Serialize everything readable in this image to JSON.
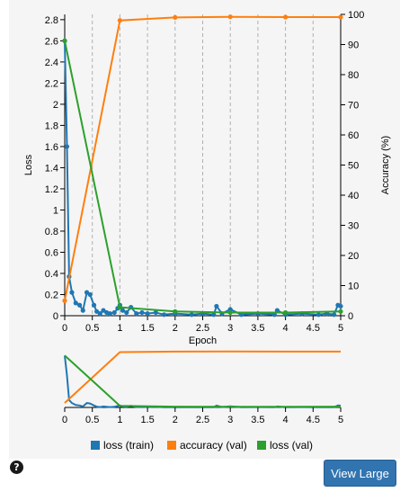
{
  "chart_data": [
    {
      "type": "line",
      "title": "",
      "xlabel": "Epoch",
      "ylabel": "Loss",
      "y2label": "Accuracy (%)",
      "xlim": [
        0,
        5
      ],
      "ylim": [
        0,
        2.85
      ],
      "y2lim": [
        0,
        100
      ],
      "x_ticks": [
        "0",
        "0.5",
        "1",
        "1.5",
        "2",
        "2.5",
        "3",
        "3.5",
        "4",
        "4.5",
        "5"
      ],
      "y_ticks": [
        "0",
        "0.2",
        "0.4",
        "0.6",
        "0.8",
        "1",
        "1.2",
        "1.4",
        "1.6",
        "1.8",
        "2",
        "2.2",
        "2.4",
        "2.6",
        "2.8"
      ],
      "y2_ticks": [
        "0",
        "10",
        "20",
        "30",
        "40",
        "50",
        "60",
        "70",
        "80",
        "90",
        "100"
      ],
      "grid": "vertical dashed",
      "legend_position": "bottom",
      "series": [
        {
          "name": "loss (train)",
          "color": "#1f77b4",
          "axis": "left",
          "x": [
            0,
            0.04,
            0.08,
            0.13,
            0.2,
            0.27,
            0.33,
            0.4,
            0.46,
            0.53,
            0.58,
            0.64,
            0.7,
            0.76,
            0.82,
            0.9,
            0.96,
            1.0,
            1.05,
            1.12,
            1.2,
            1.3,
            1.4,
            1.5,
            1.65,
            1.8,
            2.0,
            2.3,
            2.5,
            2.7,
            2.75,
            2.85,
            3.0,
            3.2,
            3.5,
            3.8,
            3.85,
            4.0,
            4.3,
            4.6,
            4.75,
            4.88,
            4.95,
            5.0
          ],
          "values": [
            2.6,
            1.6,
            0.37,
            0.22,
            0.12,
            0.1,
            0.05,
            0.22,
            0.2,
            0.1,
            0.04,
            0.02,
            0.05,
            0.03,
            0.02,
            0.03,
            0.07,
            0.1,
            0.05,
            0.03,
            0.08,
            0.02,
            0.03,
            0.02,
            0.03,
            0.01,
            0.02,
            0.01,
            0.02,
            0.01,
            0.09,
            0.02,
            0.06,
            0.01,
            0.02,
            0.01,
            0.05,
            0.01,
            0.02,
            0.01,
            0.02,
            0.01,
            0.1,
            0.09
          ]
        },
        {
          "name": "accuracy (val)",
          "color": "#ff7f0e",
          "axis": "right",
          "x": [
            0,
            1,
            2,
            3,
            4,
            5
          ],
          "values": [
            5,
            98,
            99,
            99.2,
            99.1,
            99.1
          ]
        },
        {
          "name": "loss (val)",
          "color": "#2ca02c",
          "axis": "left",
          "x": [
            0,
            1,
            2,
            3,
            4,
            5
          ],
          "values": [
            2.6,
            0.08,
            0.04,
            0.03,
            0.03,
            0.04
          ]
        }
      ]
    },
    {
      "type": "line",
      "title": "",
      "xlim": [
        0,
        5
      ],
      "x_ticks": [
        "0",
        "0.5",
        "1",
        "1.5",
        "2",
        "2.5",
        "3",
        "3.5",
        "4",
        "4.5",
        "5"
      ],
      "description": "overview / brush of the same three series"
    }
  ],
  "legend": [
    {
      "label": "loss (train)",
      "color": "#1f77b4"
    },
    {
      "label": "accuracy (val)",
      "color": "#ff7f0e"
    },
    {
      "label": "loss (val)",
      "color": "#2ca02c"
    }
  ],
  "controls": {
    "view_large_label": "View Large",
    "help_icon": "?"
  }
}
